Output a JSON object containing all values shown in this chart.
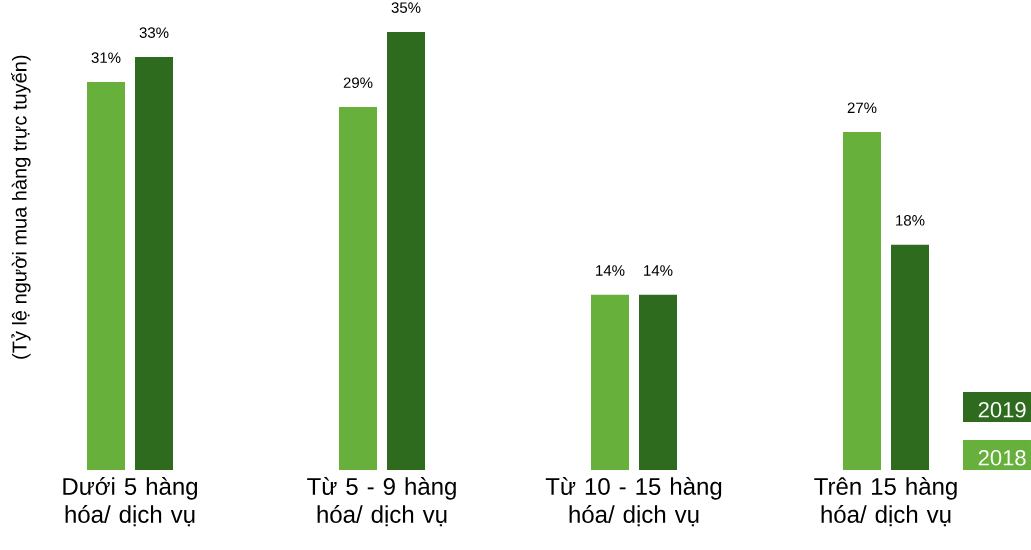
{
  "chart_data": {
    "type": "bar",
    "ylabel": "(Tỷ lệ người mua hàng trực tuyến)",
    "categories": [
      "Dưới 5 hàng hóa/ dịch vụ",
      "Từ 5 - 9 hàng hóa/ dịch vụ",
      "Từ 10 - 15 hàng hóa/ dịch vụ",
      "Trên 15 hàng hóa/ dịch vụ"
    ],
    "series": [
      {
        "name": "2018",
        "color": "#66b03b",
        "values": [
          31,
          29,
          14,
          27
        ],
        "value_labels": [
          "31%",
          "29%",
          "14%",
          "27%"
        ]
      },
      {
        "name": "2019",
        "color": "#2e6b1e",
        "values": [
          33,
          35,
          14,
          18
        ],
        "value_labels": [
          "33%",
          "35%",
          "14%",
          "18%"
        ]
      }
    ],
    "ylim": [
      0,
      35
    ],
    "legend": "bottom right",
    "grid": false,
    "tick_labels": "x"
  }
}
